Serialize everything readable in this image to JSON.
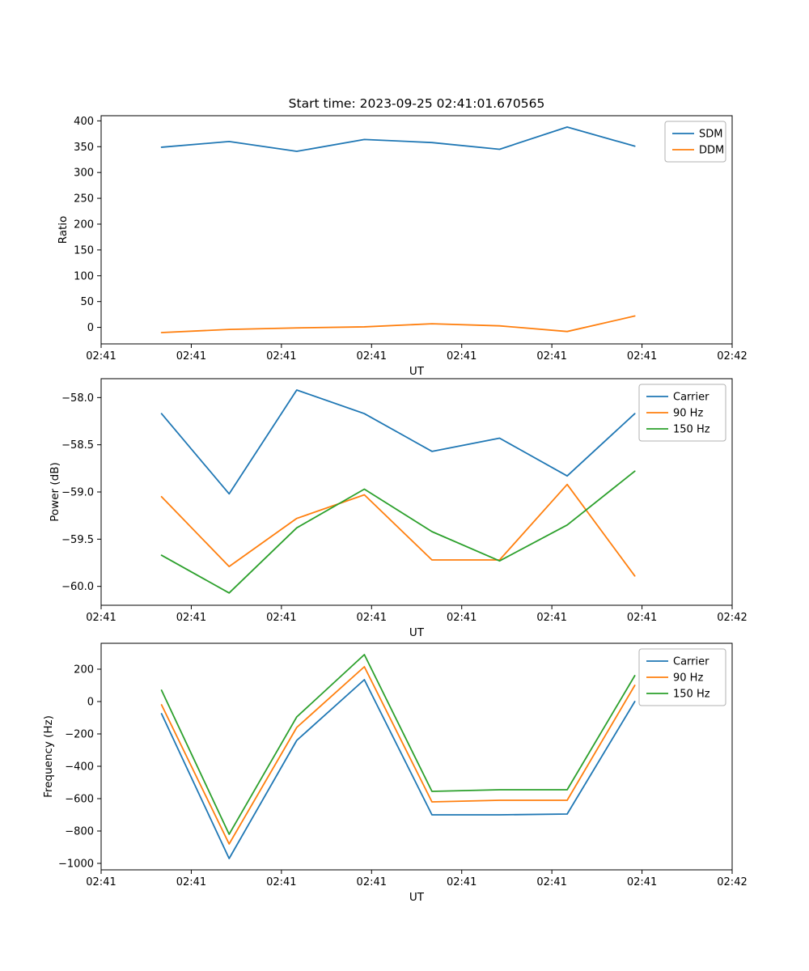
{
  "figure_title": "Start time: 2023-09-25 02:41:01.670565",
  "colors": {
    "blue": "#1f77b4",
    "orange": "#ff7f0e",
    "green": "#2ca02c"
  },
  "chart_data": [
    {
      "type": "line",
      "title": "Start time: 2023-09-25 02:41:01.670565",
      "xlabel": "UT",
      "ylabel": "Ratio",
      "grid": false,
      "legend_position": "upper right",
      "x_ticks": [
        "02:41",
        "02:41",
        "02:41",
        "02:41",
        "02:41",
        "02:41",
        "02:41",
        "02:42"
      ],
      "xlim": [
        0,
        7
      ],
      "y_tick_values": [
        0,
        50,
        100,
        150,
        200,
        250,
        300,
        350,
        400
      ],
      "y_tick_labels": [
        "0",
        "50",
        "100",
        "150",
        "200",
        "250",
        "300",
        "350",
        "400"
      ],
      "ylim": [
        -32,
        410
      ],
      "x": [
        0.67,
        1.42,
        2.17,
        2.92,
        3.67,
        4.42,
        5.17,
        5.92
      ],
      "series": [
        {
          "name": "SDM",
          "color": "#1f77b4",
          "values": [
            349,
            360,
            341,
            364,
            358,
            345,
            388,
            351
          ]
        },
        {
          "name": "DDM",
          "color": "#ff7f0e",
          "values": [
            -10,
            -4,
            -1,
            1,
            7,
            3,
            -8,
            22
          ]
        }
      ]
    },
    {
      "type": "line",
      "title": "",
      "xlabel": "UT",
      "ylabel": "Power (dB)",
      "grid": false,
      "legend_position": "upper right",
      "x_ticks": [
        "02:41",
        "02:41",
        "02:41",
        "02:41",
        "02:41",
        "02:41",
        "02:41",
        "02:42"
      ],
      "xlim": [
        0,
        7
      ],
      "y_tick_values": [
        -60.0,
        -59.5,
        -59.0,
        -58.5,
        -58.0
      ],
      "y_tick_labels": [
        "−60.0",
        "−59.5",
        "−59.0",
        "−58.5",
        "−58.0"
      ],
      "ylim": [
        -60.2,
        -57.8
      ],
      "x": [
        0.67,
        1.42,
        2.17,
        2.92,
        3.67,
        4.42,
        5.17,
        5.92
      ],
      "series": [
        {
          "name": "Carrier",
          "color": "#1f77b4",
          "values": [
            -58.17,
            -59.02,
            -57.92,
            -58.17,
            -58.57,
            -58.43,
            -58.83,
            -58.17
          ]
        },
        {
          "name": "90 Hz",
          "color": "#ff7f0e",
          "values": [
            -59.05,
            -59.79,
            -59.28,
            -59.03,
            -59.72,
            -59.72,
            -58.92,
            -59.89
          ]
        },
        {
          "name": "150 Hz",
          "color": "#2ca02c",
          "values": [
            -59.67,
            -60.07,
            -59.38,
            -58.97,
            -59.42,
            -59.73,
            -59.35,
            -58.78
          ]
        }
      ]
    },
    {
      "type": "line",
      "title": "",
      "xlabel": "UT",
      "ylabel": "Frequency (Hz)",
      "grid": false,
      "legend_position": "upper right",
      "x_ticks": [
        "02:41",
        "02:41",
        "02:41",
        "02:41",
        "02:41",
        "02:41",
        "02:41",
        "02:42"
      ],
      "xlim": [
        0,
        7
      ],
      "y_tick_values": [
        -1000,
        -800,
        -600,
        -400,
        -200,
        0,
        200
      ],
      "y_tick_labels": [
        "−1000",
        "−800",
        "−600",
        "−400",
        "−200",
        "0",
        "200"
      ],
      "ylim": [
        -1040,
        360
      ],
      "x": [
        0.67,
        1.42,
        2.17,
        2.92,
        3.67,
        4.42,
        5.17,
        5.92
      ],
      "series": [
        {
          "name": "Carrier",
          "color": "#1f77b4",
          "values": [
            -75,
            -970,
            -240,
            135,
            -700,
            -700,
            -695,
            0
          ]
        },
        {
          "name": "90 Hz",
          "color": "#ff7f0e",
          "values": [
            -20,
            -880,
            -160,
            215,
            -620,
            -610,
            -610,
            100
          ]
        },
        {
          "name": "150 Hz",
          "color": "#2ca02c",
          "values": [
            70,
            -820,
            -95,
            290,
            -555,
            -545,
            -545,
            160
          ]
        }
      ]
    }
  ]
}
